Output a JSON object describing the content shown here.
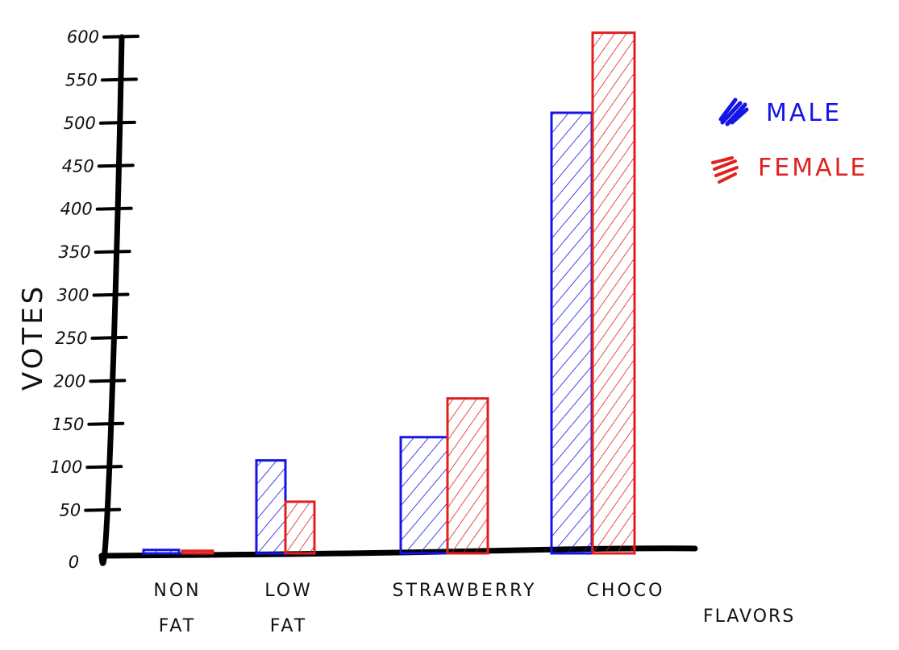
{
  "chart_data": {
    "type": "bar",
    "ylabel": "VOTES",
    "xlabel": "FLAVORS",
    "ylim": [
      0,
      600
    ],
    "yticks": [
      "0",
      "50",
      "100",
      "150",
      "200",
      "250",
      "300",
      "350",
      "400",
      "450",
      "500",
      "550",
      "600"
    ],
    "categories": [
      {
        "line1": "NON",
        "line2": "FAT"
      },
      {
        "line1": "LOW",
        "line2": "FAT"
      },
      {
        "line1": "STRAWBERRY",
        "line2": ""
      },
      {
        "line1": "CHOCO",
        "line2": ""
      }
    ],
    "series": [
      {
        "name": "MALE",
        "color": "#1515e6",
        "values": [
          4,
          108,
          135,
          512
        ]
      },
      {
        "name": "FEMALE",
        "color": "#e02020",
        "values": [
          3,
          60,
          180,
          605
        ]
      }
    ],
    "grid": false,
    "legend_position": "top-right"
  }
}
